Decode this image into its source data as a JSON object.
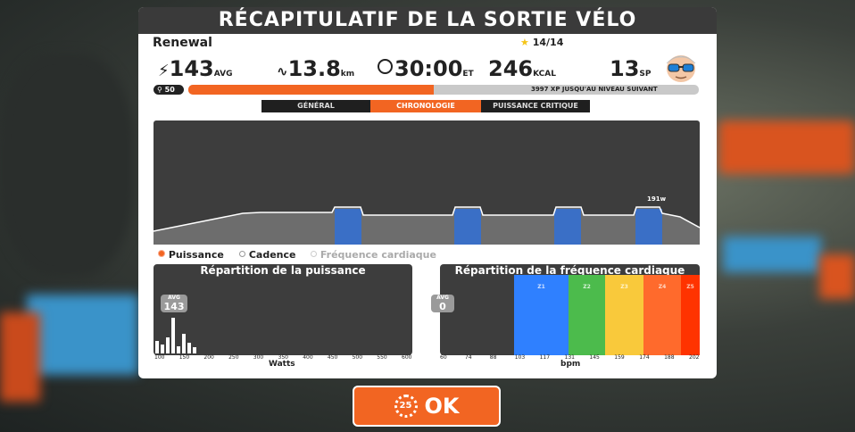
{
  "title": "RÉCAPITULATIF DE LA SORTIE VÉLO",
  "route_name": "Renewal",
  "achievements": "14/14",
  "stats": {
    "power": {
      "value": "143",
      "unit": "AVG"
    },
    "distance": {
      "value": "13.8",
      "unit": "km"
    },
    "time": {
      "value": "30:00",
      "unit": "ET"
    },
    "calories": {
      "value": "246",
      "unit": "KCAL"
    },
    "sport": {
      "value": "13",
      "unit": "SP"
    }
  },
  "level": "50",
  "xp_text": "3997 XP JUSQU'AU NIVEAU SUIVANT",
  "xp_progress": 0.48,
  "tabs": [
    "GÉNÉRAL",
    "CHRONOLOGIE",
    "PUISSANCE CRITIQUE"
  ],
  "active_tab": "CHRONOLOGIE",
  "timeline": {
    "peak_label": "191w"
  },
  "legend": [
    "Puissance",
    "Cadence",
    "Fréquence cardiaque"
  ],
  "power_dist": {
    "title": "Répartition de la puissance",
    "avg_label": "AVG",
    "avg_value": "143",
    "ticks": [
      "100",
      "150",
      "200",
      "250",
      "300",
      "350",
      "400",
      "450",
      "500",
      "550",
      "600"
    ],
    "xlabel": "Watts"
  },
  "hr_dist": {
    "title": "Répartition de la fréquence cardiaque",
    "avg_label": "AVG",
    "avg_value": "0",
    "ticks": [
      "60",
      "74",
      "88",
      "103",
      "117",
      "131",
      "145",
      "159",
      "174",
      "188",
      "202"
    ],
    "xlabel": "bpm",
    "zones": [
      {
        "label": "Z1",
        "color": "#2f80ff"
      },
      {
        "label": "Z2",
        "color": "#4cbb4c"
      },
      {
        "label": "Z3",
        "color": "#f9c93b"
      },
      {
        "label": "Z4",
        "color": "#ff6a2c"
      },
      {
        "label": "Z5",
        "color": "#ff3300"
      }
    ]
  },
  "ok_button": {
    "badge": "25",
    "label": "OK"
  },
  "colors": {
    "accent": "#f26522",
    "panel_dark": "#3d3d3d",
    "interval_blue": "#3a6fc6"
  }
}
